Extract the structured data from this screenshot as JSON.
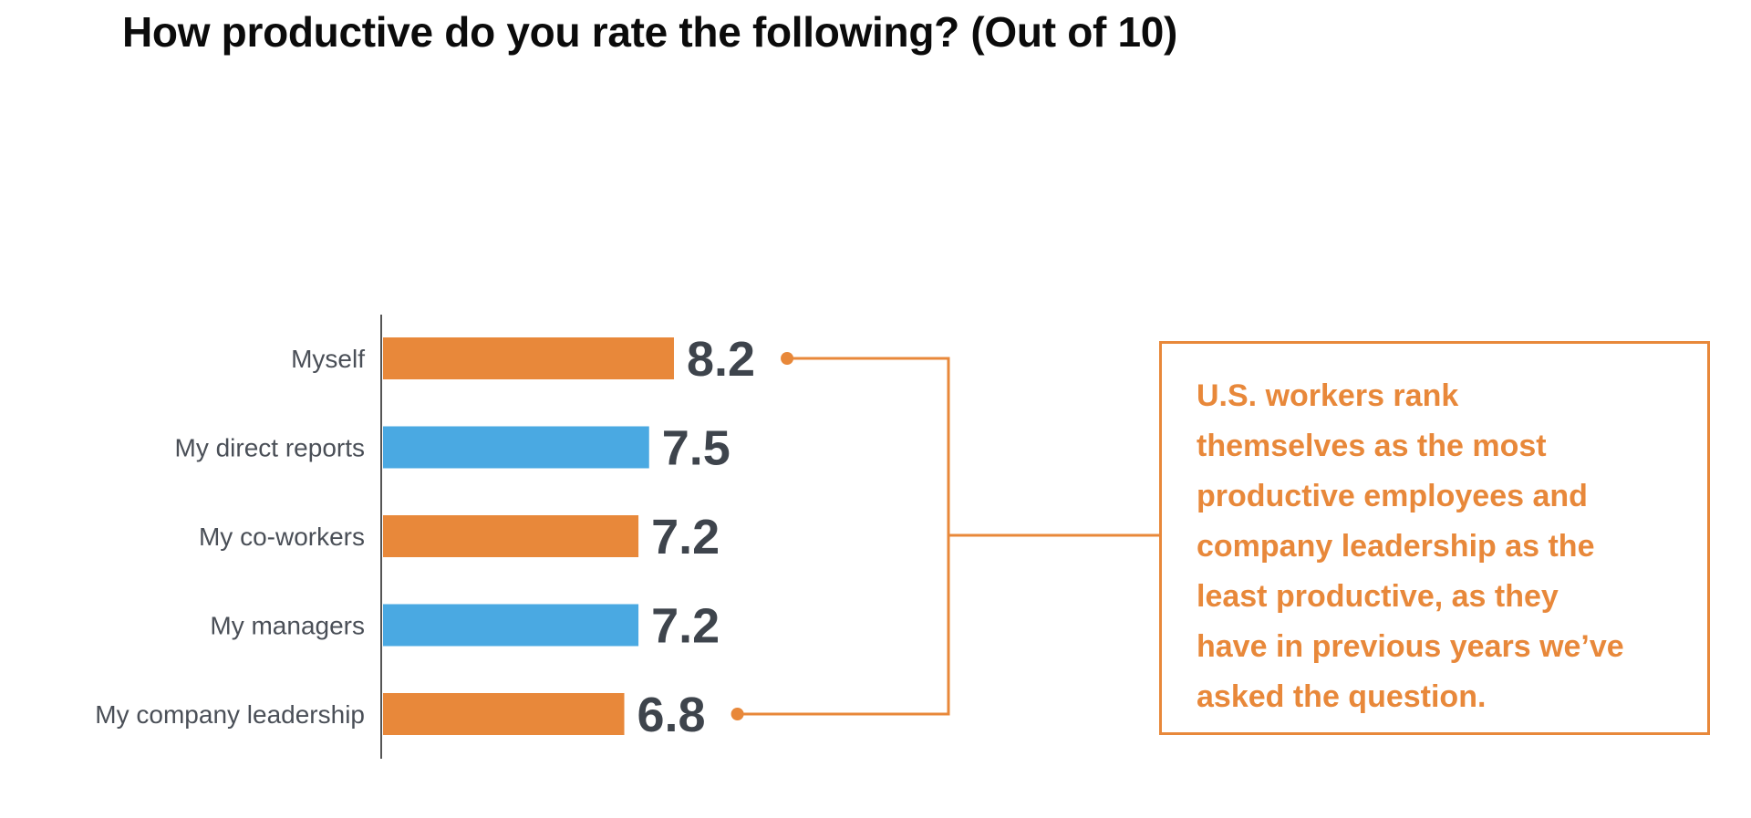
{
  "title": "How productive do you rate the following? (Out of 10)",
  "colors": {
    "orange": "#e8883a",
    "blue": "#4aa9e2",
    "value_text": "#3e444c",
    "label_text": "#4a4f57",
    "axis": "#555555"
  },
  "chart_data": {
    "type": "bar",
    "orientation": "horizontal",
    "title": "How productive do you rate the following? (Out of 10)",
    "xlabel": "",
    "ylabel": "",
    "xlim": [
      0,
      10
    ],
    "grid": false,
    "categories": [
      "Myself",
      "My direct reports",
      "My co-workers",
      "My managers",
      "My company leadership"
    ],
    "values": [
      8.2,
      7.5,
      7.2,
      7.2,
      6.8
    ],
    "value_labels": [
      "8.2",
      "7.5",
      "7.2",
      "7.2",
      "6.8"
    ],
    "bar_colors": [
      "#e8883a",
      "#4aa9e2",
      "#e8883a",
      "#4aa9e2",
      "#e8883a"
    ],
    "annotation": {
      "connects": [
        "Myself",
        "My company leadership"
      ],
      "text": "U.S. workers rank themselves as the most productive employees and company leadership as the least productive, as they have in previous years we’ve asked the question."
    }
  },
  "callout": {
    "lines": [
      "U.S. workers rank",
      "themselves as the most",
      "productive employees and",
      "company leadership as the",
      "least productive, as they",
      "have in previous years we’ve",
      "asked the question."
    ]
  }
}
